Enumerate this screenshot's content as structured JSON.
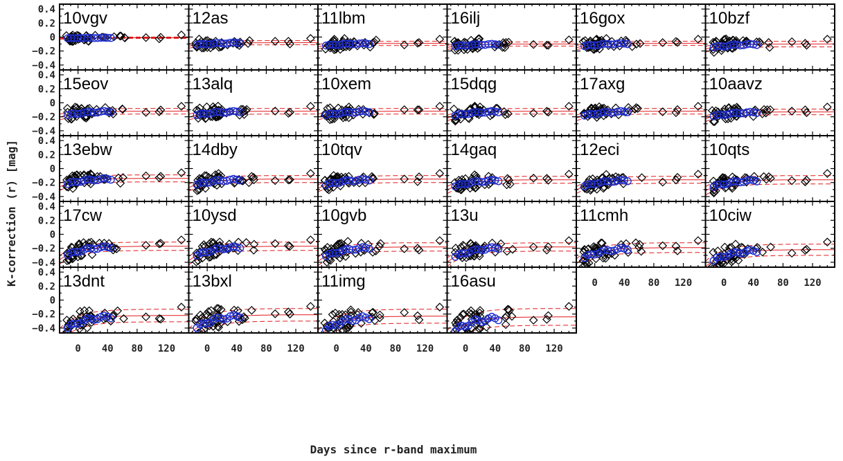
{
  "chart_data": {
    "type": "scatter",
    "layout": "small-multiples 6x5",
    "xlabel": "Days since r-band maximum",
    "ylabel": "K-correction (r) [mag]",
    "xlim": [
      -25,
      150
    ],
    "ylim": [
      -0.47,
      0.47
    ],
    "xticks": [
      "0",
      "40",
      "80",
      "120"
    ],
    "xtick_values": [
      0,
      40,
      80,
      120
    ],
    "yticks": [
      "0.4",
      "0.2",
      "0",
      "−0.2",
      "−0.4"
    ],
    "ytick_values": [
      0.4,
      0.2,
      0,
      -0.2,
      -0.4
    ],
    "marker_colors": {
      "data": "#000000",
      "highlight": "#1f2fd0",
      "model": "#e0191b"
    },
    "panels": [
      {
        "name": "10vgv",
        "a": -0.02,
        "b": 0.01,
        "spread": 0.01
      },
      {
        "name": "12as",
        "a": -0.12,
        "b": 0.04,
        "spread": 0.03
      },
      {
        "name": "11lbm",
        "a": -0.13,
        "b": 0.04,
        "spread": 0.03
      },
      {
        "name": "16ilj",
        "a": -0.14,
        "b": 0.04,
        "spread": 0.03
      },
      {
        "name": "16gox",
        "a": -0.14,
        "b": 0.05,
        "spread": 0.03
      },
      {
        "name": "10bzf",
        "a": -0.16,
        "b": 0.06,
        "spread": 0.04
      },
      {
        "name": "15eov",
        "a": -0.19,
        "b": 0.07,
        "spread": 0.04
      },
      {
        "name": "13alq",
        "a": -0.19,
        "b": 0.07,
        "spread": 0.04
      },
      {
        "name": "10xem",
        "a": -0.19,
        "b": 0.07,
        "spread": 0.04
      },
      {
        "name": "15dqg",
        "a": -0.2,
        "b": 0.08,
        "spread": 0.04
      },
      {
        "name": "17axg",
        "a": -0.2,
        "b": 0.08,
        "spread": 0.04
      },
      {
        "name": "10aavz",
        "a": -0.21,
        "b": 0.08,
        "spread": 0.04
      },
      {
        "name": "13ebw",
        "a": -0.24,
        "b": 0.1,
        "spread": 0.05
      },
      {
        "name": "14dby",
        "a": -0.25,
        "b": 0.1,
        "spread": 0.05
      },
      {
        "name": "10tqv",
        "a": -0.26,
        "b": 0.11,
        "spread": 0.05
      },
      {
        "name": "14gaq",
        "a": -0.28,
        "b": 0.12,
        "spread": 0.05
      },
      {
        "name": "12eci",
        "a": -0.28,
        "b": 0.12,
        "spread": 0.05
      },
      {
        "name": "10qts",
        "a": -0.29,
        "b": 0.13,
        "spread": 0.06
      },
      {
        "name": "17cw",
        "a": -0.33,
        "b": 0.16,
        "spread": 0.06
      },
      {
        "name": "10ysd",
        "a": -0.34,
        "b": 0.17,
        "spread": 0.06
      },
      {
        "name": "10gvb",
        "a": -0.35,
        "b": 0.17,
        "spread": 0.06
      },
      {
        "name": "13u",
        "a": -0.36,
        "b": 0.18,
        "spread": 0.06
      },
      {
        "name": "11cmh",
        "a": -0.38,
        "b": 0.19,
        "spread": 0.07
      },
      {
        "name": "10ciw",
        "a": -0.42,
        "b": 0.2,
        "spread": 0.08
      },
      {
        "name": "13dnt",
        "a": -0.45,
        "b": 0.23,
        "spread": 0.09
      },
      {
        "name": "13bxl",
        "a": -0.45,
        "b": 0.24,
        "spread": 0.09
      },
      {
        "name": "11img",
        "a": -0.48,
        "b": 0.25,
        "spread": 0.1
      },
      {
        "name": "16asu",
        "a": -0.5,
        "b": 0.26,
        "spread": 0.12
      }
    ]
  }
}
